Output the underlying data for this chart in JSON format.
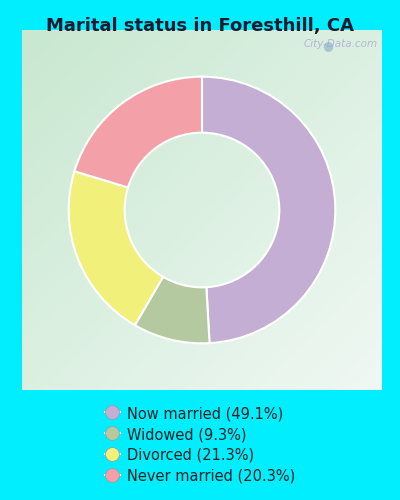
{
  "title": "Marital status in Foresthill, CA",
  "slices": [
    49.1,
    9.3,
    21.3,
    20.3
  ],
  "labels": [
    "Now married (49.1%)",
    "Widowed (9.3%)",
    "Divorced (21.3%)",
    "Never married (20.3%)"
  ],
  "colors": [
    "#c4aed4",
    "#b5c9a0",
    "#f0f07a",
    "#f4a0a8"
  ],
  "outer_bg_color": "#00eeff",
  "chart_bg_top_left": "#c8e8d0",
  "chart_bg_center": "#f0f8f4",
  "title_fontsize": 13,
  "watermark": "City-Data.com",
  "startangle": 90,
  "donut_width": 0.42,
  "legend_fontsize": 10.5
}
